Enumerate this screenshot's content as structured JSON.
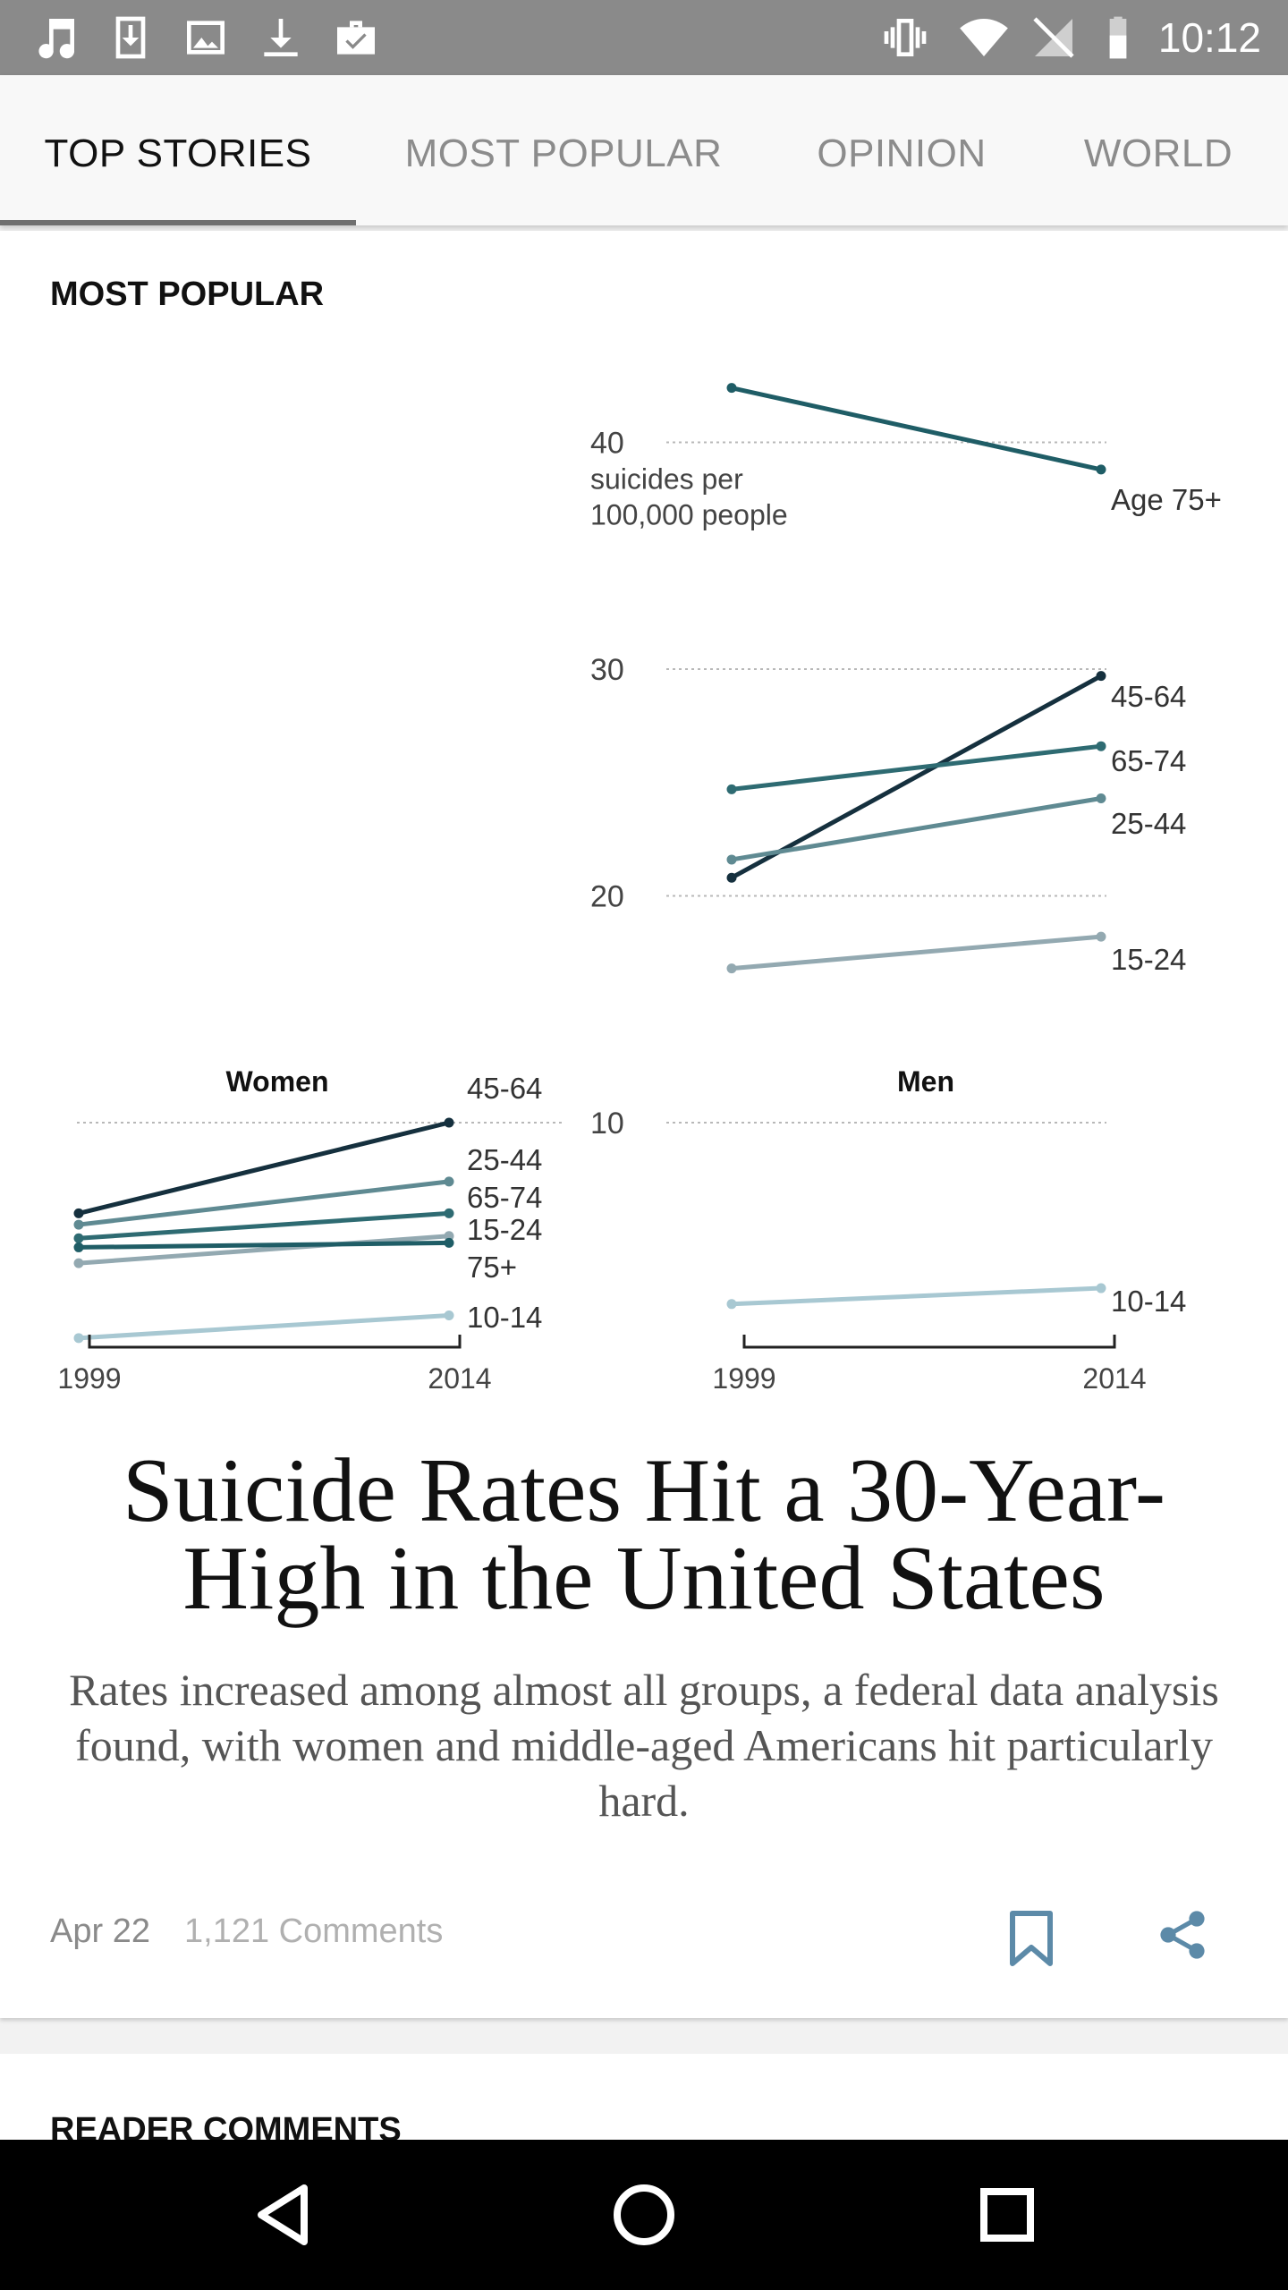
{
  "status_bar": {
    "time": "10:12",
    "left_icons": [
      "music-note-icon",
      "download-box-icon",
      "image-icon",
      "download-icon",
      "briefcase-check-icon"
    ],
    "right_icons": [
      "vibrate-icon",
      "wifi-icon",
      "no-signal-icon",
      "battery-icon"
    ]
  },
  "tabs": [
    {
      "label": "TOP STORIES",
      "active": true
    },
    {
      "label": "MOST POPULAR",
      "active": false
    },
    {
      "label": "OPINION",
      "active": false
    },
    {
      "label": "WORLD",
      "active": false
    }
  ],
  "section_label": "MOST POPULAR",
  "chart_data": {
    "type": "line",
    "x": [
      1999,
      2014
    ],
    "unit_label": [
      "suicides per",
      "100,000 people"
    ],
    "y_ticks": [
      10,
      20,
      30,
      40
    ],
    "ylim": [
      5,
      43
    ],
    "grid": true,
    "panels": [
      {
        "title": "Women",
        "series": [
          {
            "name": "45-64",
            "values": [
              6.0,
              10.0
            ],
            "color": "#15303e"
          },
          {
            "name": "25-44",
            "values": [
              5.5,
              7.4
            ],
            "color": "#5f8a92"
          },
          {
            "name": "65-74",
            "values": [
              4.9,
              6.0
            ],
            "color": "#2e6b72"
          },
          {
            "name": "15-24",
            "values": [
              3.8,
              5.0
            ],
            "color": "#93a9b1"
          },
          {
            "name": "75+",
            "values": [
              4.5,
              4.7
            ],
            "color": "#1f5d66"
          },
          {
            "name": "10-14",
            "values": [
              0.5,
              1.5
            ],
            "color": "#a8c8d2"
          }
        ]
      },
      {
        "title": "Men",
        "series": [
          {
            "name": "Age 75+",
            "values": [
              42.4,
              38.8
            ],
            "color": "#1f5d66"
          },
          {
            "name": "45-64",
            "values": [
              20.8,
              29.7
            ],
            "color": "#15303e"
          },
          {
            "name": "65-74",
            "values": [
              24.7,
              26.6
            ],
            "color": "#2e6b72"
          },
          {
            "name": "25-44",
            "values": [
              21.6,
              24.3
            ],
            "color": "#5f8a92"
          },
          {
            "name": "15-24",
            "values": [
              16.8,
              18.2
            ],
            "color": "#93a9b1"
          },
          {
            "name": "10-14",
            "values": [
              2.0,
              2.7
            ],
            "color": "#a8c8d2"
          }
        ]
      }
    ]
  },
  "headline": "Suicide Rates Hit a 30-Year-High in the United States",
  "summary": "Rates increased among almost all groups, a federal data analysis found, with women and middle-aged Americans hit particularly hard.",
  "meta": {
    "date": "Apr 22",
    "comments": "1,121 Comments"
  },
  "next_section_label": "READER COMMENTS",
  "nav_bar": {
    "buttons": [
      "back-icon",
      "home-icon",
      "recents-icon"
    ]
  }
}
